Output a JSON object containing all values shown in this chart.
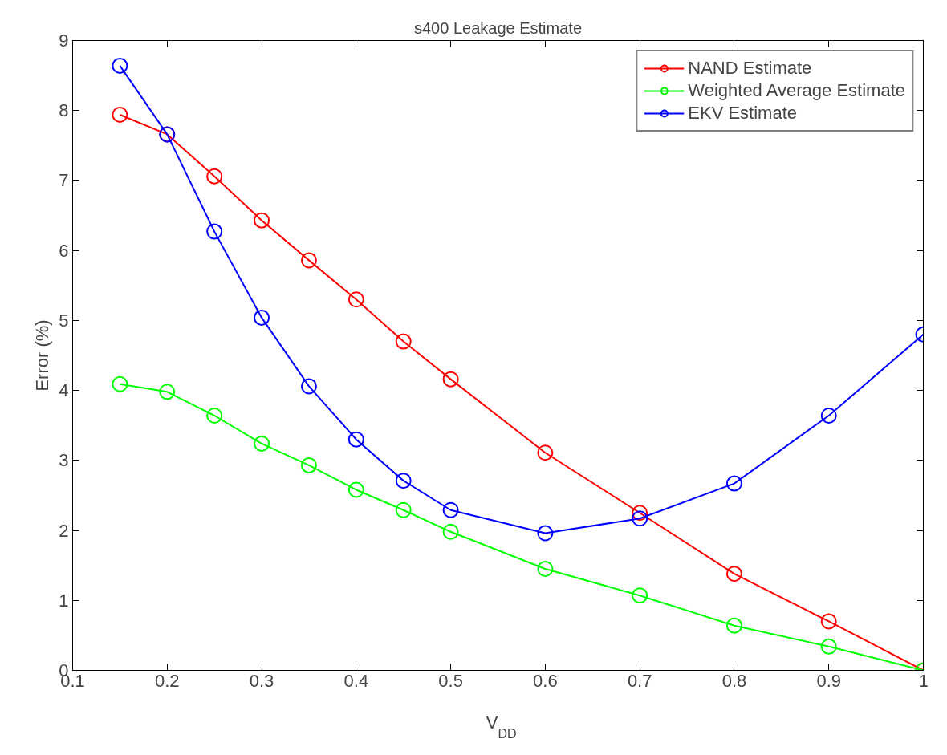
{
  "chart_data": {
    "type": "line",
    "title": "s400 Leakage Estimate",
    "xlabel": "V$_{DD}$",
    "ylabel": "Error (%)",
    "x": [
      0.15,
      0.2,
      0.25,
      0.3,
      0.35,
      0.4,
      0.45,
      0.5,
      0.6,
      0.7,
      0.8,
      0.9,
      1.0
    ],
    "series": [
      {
        "name": "NAND Estimate",
        "color": "#ff0000",
        "values": [
          7.94,
          7.66,
          7.06,
          6.43,
          5.86,
          5.3,
          4.7,
          4.16,
          3.11,
          2.25,
          1.38,
          0.7,
          0
        ]
      },
      {
        "name": "Weighted Average Estimate",
        "color": "#00ff00",
        "values": [
          4.09,
          3.98,
          3.64,
          3.24,
          2.93,
          2.58,
          2.29,
          1.98,
          1.45,
          1.07,
          0.64,
          0.34,
          0
        ]
      },
      {
        "name": "EKV Estimate",
        "color": "#0000ff",
        "values": [
          8.64,
          7.66,
          6.27,
          5.04,
          4.06,
          3.3,
          2.71,
          2.29,
          1.96,
          2.17,
          2.67,
          3.64,
          4.8
        ]
      }
    ],
    "xlim": [
      0.1,
      1
    ],
    "xticks": [
      0.1,
      0.2,
      0.3,
      0.4,
      0.5,
      0.6,
      0.7,
      0.8,
      0.9,
      1
    ],
    "ylim": [
      0,
      9
    ],
    "yticks": [
      0,
      1,
      2,
      3,
      4,
      5,
      6,
      7,
      8,
      9
    ],
    "grid": false,
    "legend": "top right",
    "marker": "circle",
    "line_style": "solid"
  }
}
